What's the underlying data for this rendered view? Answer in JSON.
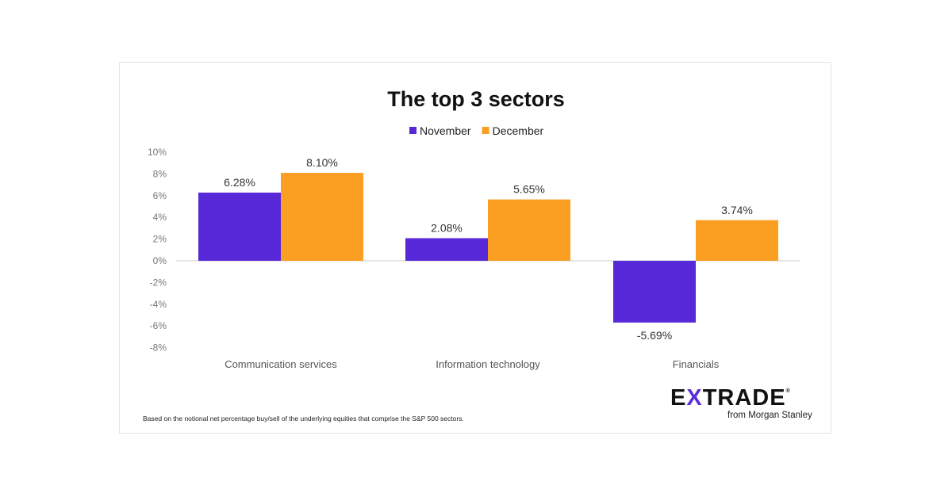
{
  "chart_data": {
    "type": "bar",
    "title": "The top 3 sectors",
    "categories": [
      "Communication services",
      "Information technology",
      "Financials"
    ],
    "series": [
      {
        "name": "November",
        "color": "#5729d9",
        "values": [
          6.28,
          2.08,
          -5.69
        ],
        "labels": [
          "6.28%",
          "2.08%",
          "-5.69%"
        ]
      },
      {
        "name": "December",
        "color": "#fb9f22",
        "values": [
          8.1,
          5.65,
          3.74
        ],
        "labels": [
          "8.10%",
          "5.65%",
          "3.74%"
        ]
      }
    ],
    "ylim": [
      -8,
      10
    ],
    "yticks": [
      10,
      8,
      6,
      4,
      2,
      0,
      -2,
      -4,
      -6,
      -8
    ],
    "ytick_labels": [
      "10%",
      "8%",
      "6%",
      "4%",
      "2%",
      "0%",
      "-2%",
      "-4%",
      "-6%",
      "-8%"
    ],
    "xlabel": "",
    "ylabel": "",
    "grid": false,
    "legend_position": "top"
  },
  "footnote": "Based on the notional net percentage buy/sell of the underlying equities that comprise the S&P 500 sectors.",
  "logo": {
    "pre": "E",
    "x": "X",
    "post": "TRADE",
    "mark": "®",
    "sub": "from Morgan Stanley"
  }
}
